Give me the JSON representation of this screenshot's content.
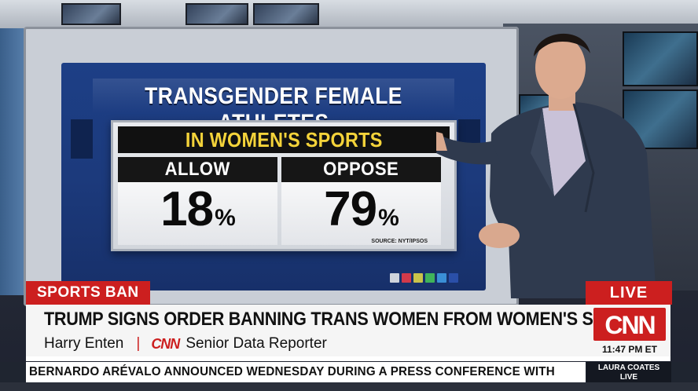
{
  "graphic": {
    "title": "TRANSGENDER FEMALE ATHLETES",
    "subtitle": "IN WOMEN'S SPORTS",
    "left_label": "ALLOW",
    "left_value": "18",
    "right_label": "OPPOSE",
    "right_value": "79",
    "percent_sign": "%",
    "source": "SOURCE: NYT/IPSOS"
  },
  "lower_third": {
    "section_tag": "SPORTS BAN",
    "live_tag": "LIVE",
    "headline": "TRUMP SIGNS ORDER BANNING TRANS WOMEN FROM WOMEN'S SPORTS",
    "reporter_name": "Harry Enten",
    "separator": "|",
    "network_mini": "CNN",
    "reporter_title": "Senior Data Reporter",
    "logo_text": "CNN",
    "time": "11:47 PM ET"
  },
  "ticker": {
    "text": "BERNARDO ARÉVALO ANNOUNCED WEDNESDAY DURING A PRESS CONFERENCE WITH",
    "show_line1": "LAURA COATES",
    "show_line2": "LIVE"
  },
  "colors": {
    "cnn_red": "#cc1f1f",
    "panel_yellow": "#f4d33a",
    "wall_blue": "#1d3f86"
  }
}
